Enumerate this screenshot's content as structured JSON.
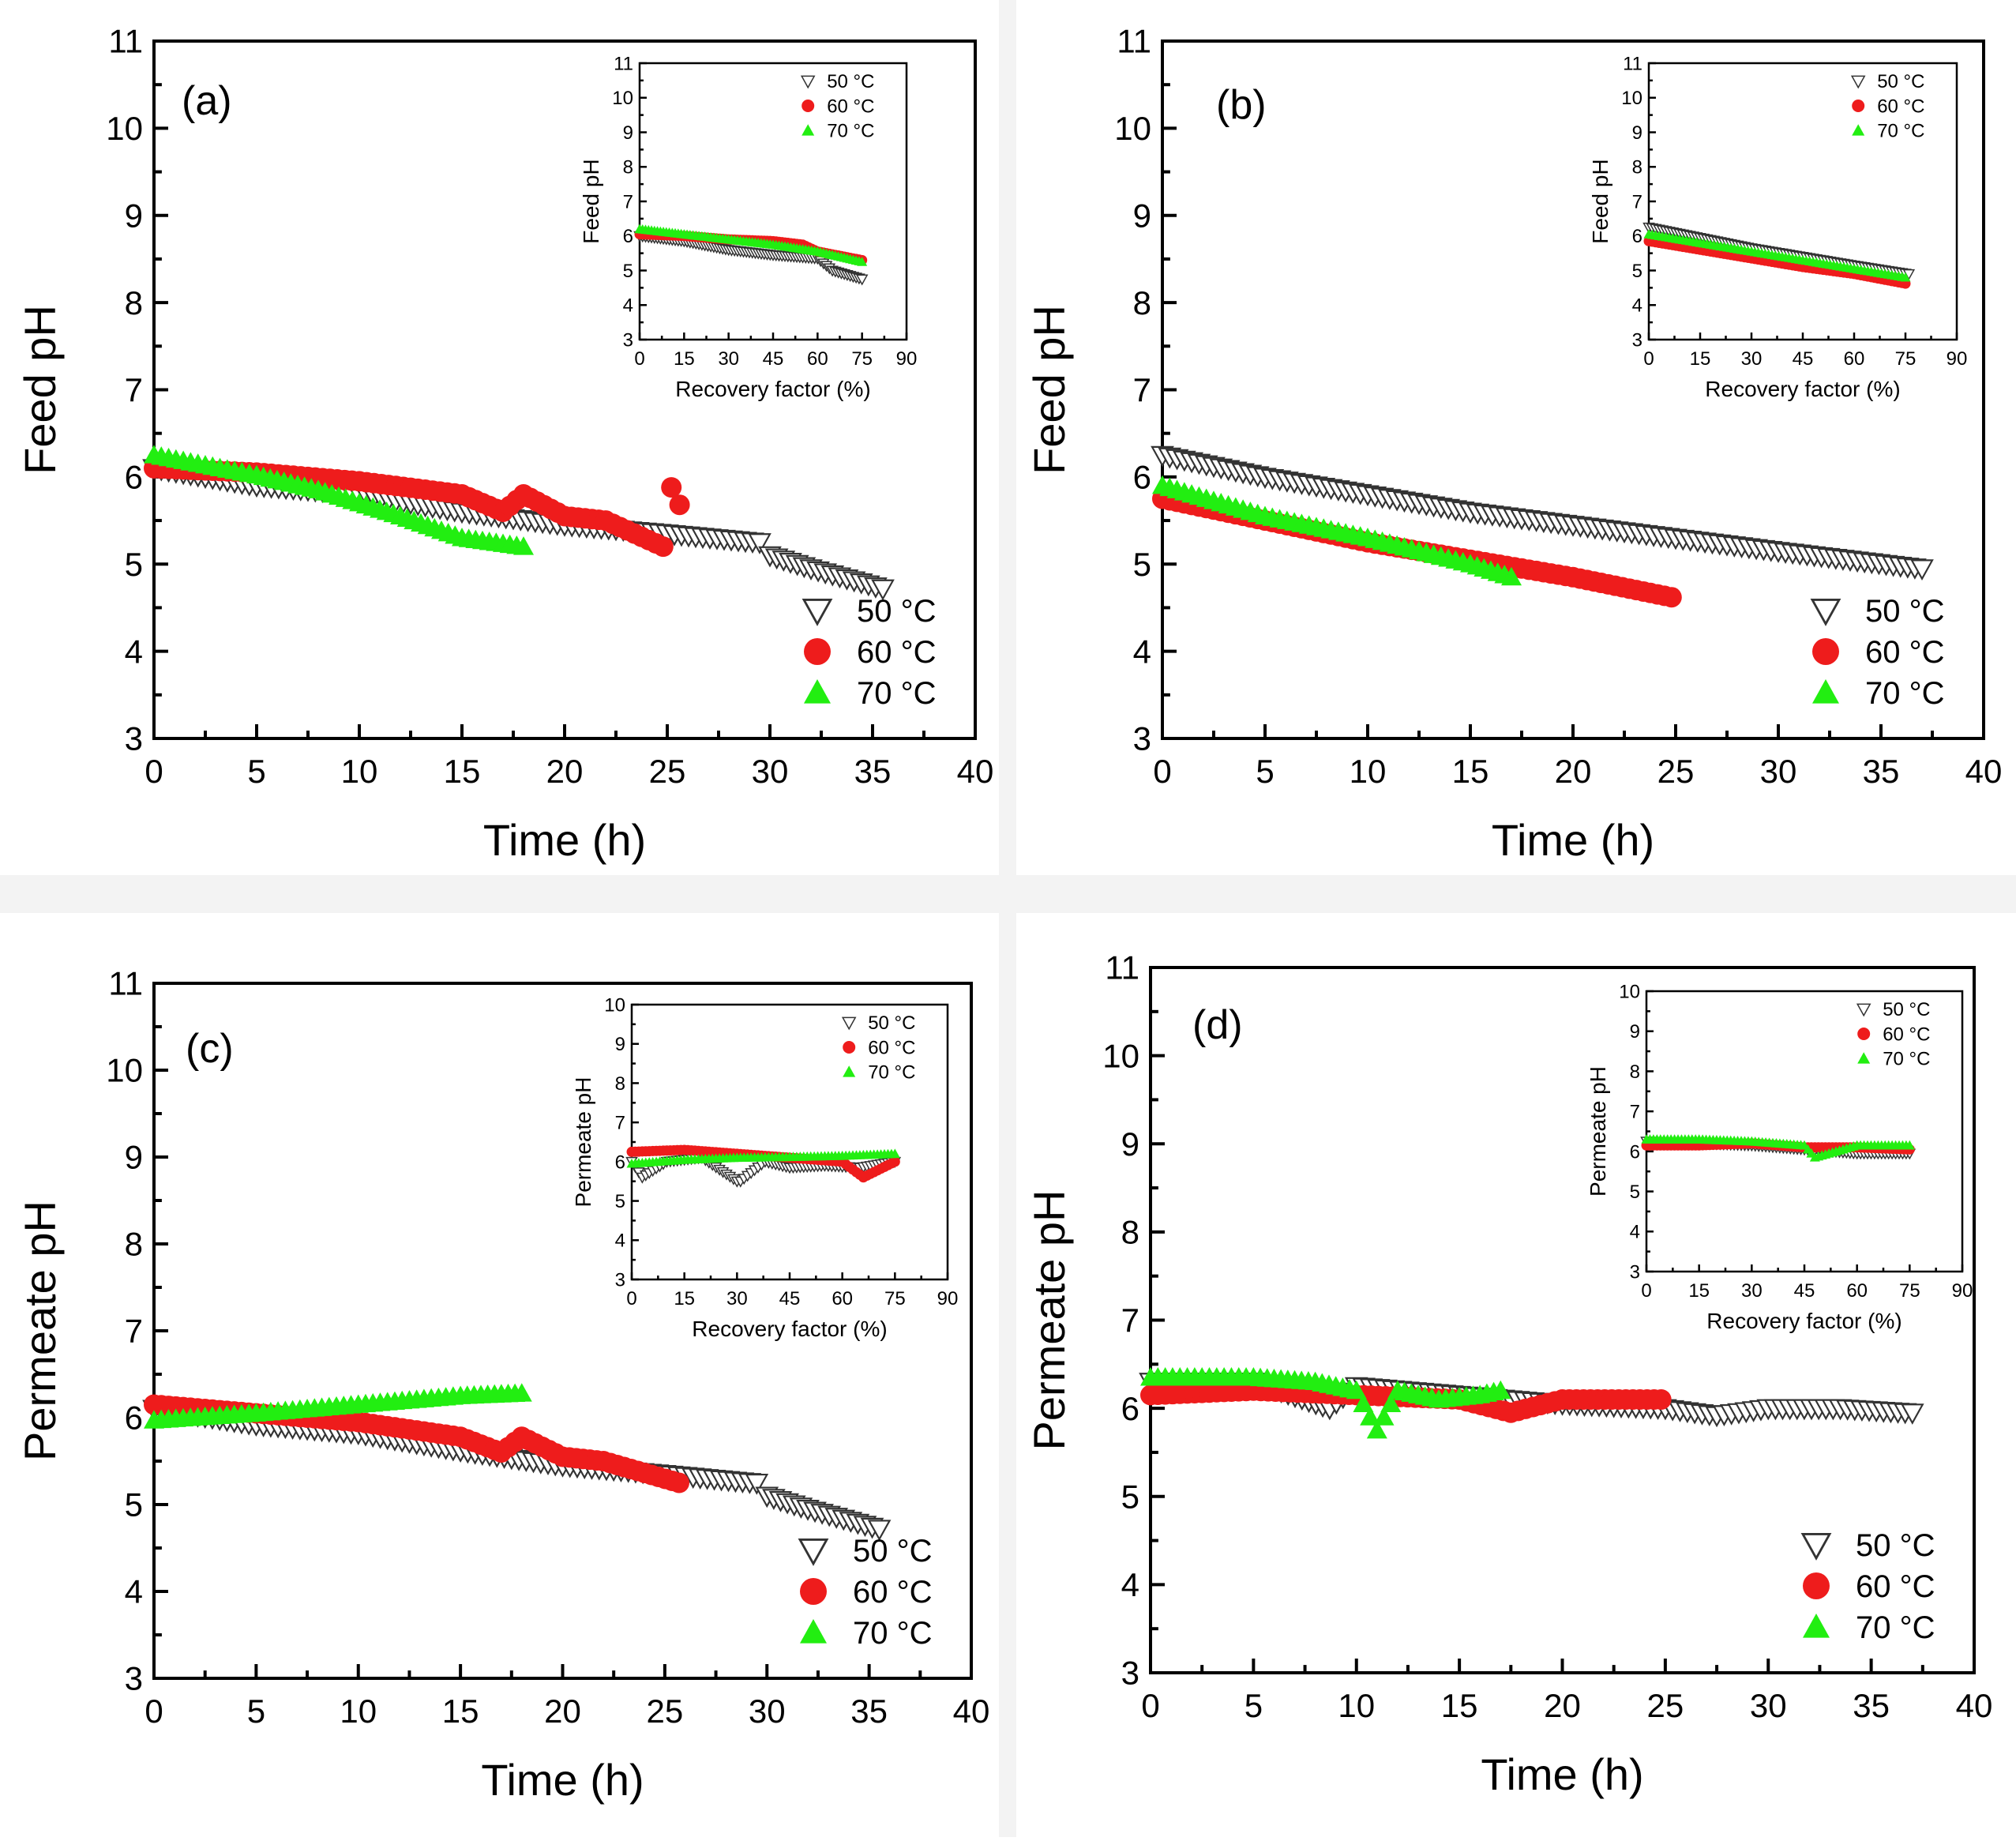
{
  "figure": {
    "description_free": true
  },
  "colors": {
    "s50_stroke": "#333333",
    "s60": "#ee1c1c",
    "s70": "#22ee11",
    "axis": "#000000"
  },
  "chart_data": [
    {
      "panel": "(a)",
      "type": "scatter",
      "xlabel": "Time (h)",
      "ylabel": "Feed pH",
      "xlim": [
        0,
        40
      ],
      "ylim": [
        3,
        11
      ],
      "xticks": [
        0,
        5,
        10,
        15,
        20,
        25,
        30,
        35,
        40
      ],
      "yticks": [
        3,
        4,
        5,
        6,
        7,
        8,
        9,
        10,
        11
      ],
      "legend": {
        "position": "bottom-right",
        "entries": [
          "50 °C",
          "60 °C",
          "70 °C"
        ]
      },
      "series": [
        {
          "name": "50 °C",
          "marker": "triangle-down-open",
          "x": [
            0,
            5,
            10,
            15,
            20,
            25,
            29.5,
            30,
            32,
            35.5
          ],
          "y": [
            6.1,
            5.9,
            5.8,
            5.6,
            5.45,
            5.35,
            5.25,
            5.1,
            4.95,
            4.72
          ]
        },
        {
          "name": "60 °C",
          "marker": "circle",
          "x": [
            0,
            5,
            10,
            15,
            17,
            18,
            20,
            22,
            24.8,
            25.2,
            25.6
          ],
          "y": [
            6.1,
            6.05,
            5.95,
            5.8,
            5.6,
            5.8,
            5.55,
            5.5,
            5.2,
            5.88,
            5.68
          ]
        },
        {
          "name": "70 °C",
          "marker": "triangle-up",
          "x": [
            0,
            5,
            8,
            10,
            12,
            15,
            18
          ],
          "y": [
            6.25,
            6.02,
            5.85,
            5.7,
            5.55,
            5.3,
            5.2
          ]
        }
      ],
      "inset": {
        "xlabel": "Recovery factor (%)",
        "ylabel": "Feed pH",
        "xlim": [
          0,
          90
        ],
        "ylim": [
          3,
          11
        ],
        "xticks": [
          0,
          15,
          30,
          45,
          60,
          75,
          90
        ],
        "yticks": [
          3,
          4,
          5,
          6,
          7,
          8,
          9,
          10,
          11
        ],
        "legend": {
          "position": "top-right",
          "entries": [
            "50 °C",
            "60 °C",
            "70 °C"
          ]
        },
        "series": [
          {
            "name": "50 °C",
            "x": [
              0,
              15,
              30,
              45,
              60,
              65,
              75
            ],
            "y": [
              6.0,
              5.85,
              5.6,
              5.45,
              5.35,
              5.0,
              4.75
            ]
          },
          {
            "name": "60 °C",
            "x": [
              0,
              15,
              30,
              45,
              55,
              60,
              75
            ],
            "y": [
              6.05,
              6.0,
              5.9,
              5.85,
              5.75,
              5.55,
              5.3
            ]
          },
          {
            "name": "70 °C",
            "x": [
              0,
              15,
              30,
              45,
              60,
              75
            ],
            "y": [
              6.2,
              6.05,
              5.9,
              5.75,
              5.55,
              5.25
            ]
          }
        ]
      }
    },
    {
      "panel": "(b)",
      "type": "scatter",
      "xlabel": "Time (h)",
      "ylabel": "Feed pH",
      "xlim": [
        0,
        40
      ],
      "ylim": [
        3,
        11
      ],
      "xticks": [
        0,
        5,
        10,
        15,
        20,
        25,
        30,
        35,
        40
      ],
      "yticks": [
        3,
        4,
        5,
        6,
        7,
        8,
        9,
        10,
        11
      ],
      "legend": {
        "position": "bottom-right",
        "entries": [
          "50 °C",
          "60 °C",
          "70 °C"
        ]
      },
      "series": [
        {
          "name": "50 °C",
          "marker": "triangle-down-open",
          "x": [
            0,
            5,
            10,
            15,
            20,
            25,
            30,
            37
          ],
          "y": [
            6.25,
            6.0,
            5.8,
            5.6,
            5.45,
            5.3,
            5.15,
            4.95
          ]
        },
        {
          "name": "60 °C",
          "marker": "circle",
          "x": [
            0,
            5,
            10,
            15,
            20,
            24.8
          ],
          "y": [
            5.75,
            5.5,
            5.25,
            5.05,
            4.85,
            4.62
          ]
        },
        {
          "name": "70 °C",
          "marker": "triangle-up",
          "x": [
            0,
            5,
            10,
            15,
            17
          ],
          "y": [
            5.9,
            5.55,
            5.3,
            5.0,
            4.85
          ]
        }
      ],
      "inset": {
        "xlabel": "Recovery factor (%)",
        "ylabel": "Feed pH",
        "xlim": [
          0,
          90
        ],
        "ylim": [
          3,
          11
        ],
        "xticks": [
          0,
          15,
          30,
          45,
          60,
          75,
          90
        ],
        "yticks": [
          3,
          4,
          5,
          6,
          7,
          8,
          9,
          10,
          11
        ],
        "legend": {
          "position": "top-right",
          "entries": [
            "50 °C",
            "60 °C",
            "70 °C"
          ]
        },
        "series": [
          {
            "name": "50 °C",
            "x": [
              0,
              15,
              30,
              45,
              60,
              76
            ],
            "y": [
              6.25,
              5.95,
              5.65,
              5.4,
              5.15,
              4.9
            ]
          },
          {
            "name": "60 °C",
            "x": [
              0,
              15,
              30,
              45,
              60,
              75
            ],
            "y": [
              5.85,
              5.6,
              5.35,
              5.1,
              4.9,
              4.62
            ]
          },
          {
            "name": "70 °C",
            "x": [
              0,
              15,
              30,
              45,
              60,
              75
            ],
            "y": [
              6.05,
              5.8,
              5.55,
              5.3,
              5.05,
              4.8
            ]
          }
        ]
      }
    },
    {
      "panel": "(c)",
      "type": "scatter",
      "xlabel": "Time (h)",
      "ylabel": "Permeate pH",
      "xlim": [
        0,
        40
      ],
      "ylim": [
        3,
        11
      ],
      "xticks": [
        0,
        5,
        10,
        15,
        20,
        25,
        30,
        35,
        40
      ],
      "yticks": [
        3,
        4,
        5,
        6,
        7,
        8,
        9,
        10,
        11
      ],
      "legend": {
        "position": "bottom-right",
        "entries": [
          "50 °C",
          "60 °C",
          "70 °C"
        ]
      },
      "series": [
        {
          "name": "50 °C",
          "marker": "triangle-down-open",
          "x": [
            0,
            5,
            10,
            15,
            20,
            25,
            29.5,
            30,
            32,
            35.5
          ],
          "y": [
            6.1,
            5.92,
            5.82,
            5.62,
            5.45,
            5.35,
            5.25,
            5.1,
            4.95,
            4.72
          ]
        },
        {
          "name": "60 °C",
          "marker": "circle",
          "x": [
            0,
            5,
            10,
            15,
            17,
            18,
            20,
            22,
            25.7
          ],
          "y": [
            6.15,
            6.05,
            5.95,
            5.78,
            5.6,
            5.78,
            5.55,
            5.5,
            5.25
          ]
        },
        {
          "name": "70 °C",
          "marker": "triangle-up",
          "x": [
            0,
            5,
            10,
            15,
            18
          ],
          "y": [
            5.97,
            6.05,
            6.15,
            6.25,
            6.28
          ]
        }
      ],
      "inset": {
        "xlabel": "Recovery factor (%)",
        "ylabel": "Permeate pH",
        "xlim": [
          0,
          90
        ],
        "ylim": [
          3,
          10
        ],
        "xticks": [
          0,
          15,
          30,
          45,
          60,
          75,
          90
        ],
        "yticks": [
          3,
          4,
          5,
          6,
          7,
          8,
          9,
          10
        ],
        "legend": {
          "position": "top-right",
          "entries": [
            "50 °C",
            "60 °C",
            "70 °C"
          ]
        },
        "series": [
          {
            "name": "50 °C",
            "x": [
              0,
              3,
              10,
              20,
              30,
              31,
              38,
              45,
              55,
              65,
              75
            ],
            "y": [
              6.0,
              5.6,
              6.0,
              6.1,
              5.5,
              5.5,
              6.0,
              5.85,
              5.9,
              5.85,
              6.0
            ]
          },
          {
            "name": "60 °C",
            "x": [
              0,
              15,
              30,
              45,
              60,
              66,
              75
            ],
            "y": [
              6.25,
              6.3,
              6.2,
              6.1,
              6.0,
              5.6,
              6.0
            ]
          },
          {
            "name": "70 °C",
            "x": [
              0,
              15,
              30,
              45,
              60,
              75
            ],
            "y": [
              5.95,
              6.05,
              6.1,
              6.12,
              6.15,
              6.2
            ]
          }
        ]
      }
    },
    {
      "panel": "(d)",
      "type": "scatter",
      "xlabel": "Time (h)",
      "ylabel": "Permeate pH",
      "xlim": [
        0,
        40
      ],
      "ylim": [
        3,
        11
      ],
      "xticks": [
        0,
        5,
        10,
        15,
        20,
        25,
        30,
        35,
        40
      ],
      "yticks": [
        3,
        4,
        5,
        6,
        7,
        8,
        9,
        10,
        11
      ],
      "legend": {
        "position": "bottom-right",
        "entries": [
          "50 °C",
          "60 °C",
          "70 °C"
        ]
      },
      "series": [
        {
          "name": "50 °C",
          "marker": "triangle-down-open",
          "x": [
            0,
            5,
            8.7,
            10,
            15,
            20,
            25,
            27.5,
            30,
            33.5,
            37
          ],
          "y": [
            6.3,
            6.3,
            6.0,
            6.25,
            6.15,
            6.05,
            6.0,
            5.92,
            6.0,
            6.0,
            5.95
          ]
        },
        {
          "name": "60 °C",
          "marker": "circle",
          "x": [
            0,
            5,
            10,
            15,
            17.5,
            20,
            24.8
          ],
          "y": [
            6.15,
            6.2,
            6.15,
            6.1,
            5.95,
            6.1,
            6.1
          ]
        },
        {
          "name": "70 °C",
          "marker": "triangle-up",
          "x": [
            0,
            5,
            8,
            10,
            11,
            12,
            14,
            16,
            17
          ],
          "y": [
            6.35,
            6.35,
            6.3,
            6.2,
            5.75,
            6.2,
            6.1,
            6.15,
            6.2
          ]
        }
      ],
      "inset": {
        "xlabel": "Recovery factor (%)",
        "ylabel": "Permeate pH",
        "xlim": [
          0,
          90
        ],
        "ylim": [
          3,
          10
        ],
        "xticks": [
          0,
          15,
          30,
          45,
          60,
          75,
          90
        ],
        "yticks": [
          3,
          4,
          5,
          6,
          7,
          8,
          9,
          10
        ],
        "legend": {
          "position": "top-right",
          "entries": [
            "50 °C",
            "60 °C",
            "70 °C"
          ]
        },
        "series": [
          {
            "name": "50 °C",
            "x": [
              0,
              15,
              30,
              45,
              60,
              75
            ],
            "y": [
              6.25,
              6.2,
              6.15,
              6.05,
              5.95,
              5.95
            ]
          },
          {
            "name": "60 °C",
            "x": [
              0,
              15,
              30,
              45,
              60,
              75
            ],
            "y": [
              6.15,
              6.15,
              6.2,
              6.1,
              6.1,
              6.05
            ]
          },
          {
            "name": "70 °C",
            "x": [
              0,
              15,
              30,
              45,
              48,
              60,
              75
            ],
            "y": [
              6.3,
              6.3,
              6.25,
              6.15,
              5.85,
              6.15,
              6.15
            ]
          }
        ]
      }
    }
  ]
}
